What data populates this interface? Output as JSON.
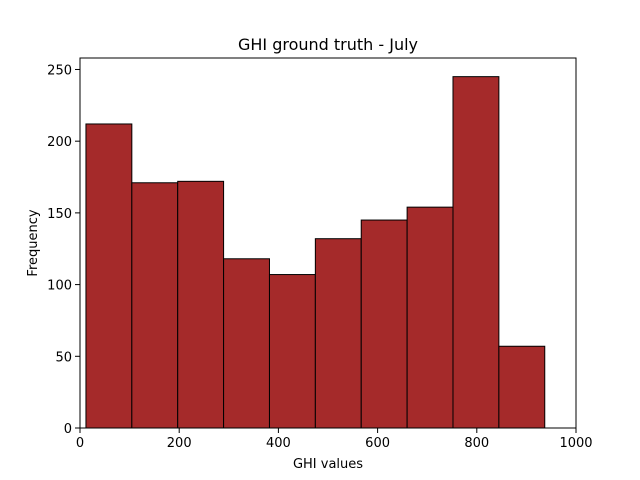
{
  "chart_data": {
    "type": "bar",
    "title": "GHI ground truth - July",
    "xlabel": "GHI values",
    "ylabel": "Frequency",
    "xlim": [
      0,
      1000
    ],
    "ylim": [
      0,
      258
    ],
    "x_ticks": [
      0,
      200,
      400,
      600,
      800,
      1000
    ],
    "y_ticks": [
      0,
      50,
      100,
      150,
      200,
      250
    ],
    "bin_edges": [
      12,
      104.5,
      197,
      289.5,
      382,
      474.5,
      567,
      659.5,
      752,
      844.5,
      937
    ],
    "values": [
      212,
      171,
      172,
      118,
      107,
      132,
      145,
      154,
      245,
      57
    ],
    "grid": false,
    "colors": {
      "bar_fill": "#a52a2a",
      "bar_edge": "#000000"
    }
  }
}
